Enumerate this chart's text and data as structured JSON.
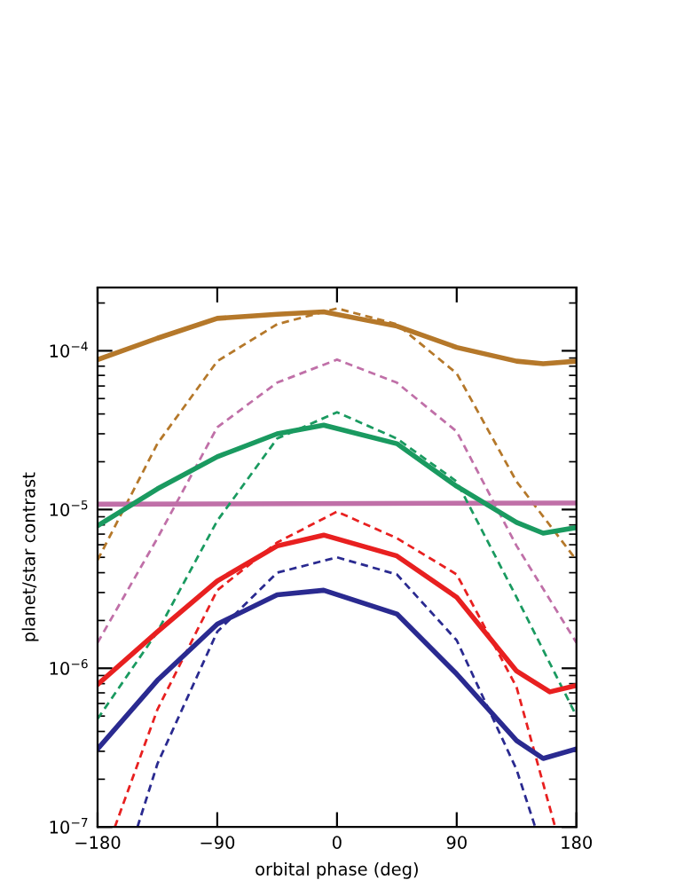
{
  "chart_data": {
    "type": "line",
    "xlabel": "orbital phase (deg)",
    "ylabel": "planet/star contrast",
    "log": "y",
    "grid": false,
    "xlim": [
      -180,
      180
    ],
    "xticks": [
      -180,
      -90,
      0,
      90,
      180
    ],
    "ylim": [
      1e-07,
      0.00025
    ],
    "yticks": [
      {
        "value": 1e-07,
        "label": "10$^{−7}$"
      },
      {
        "value": 1e-06,
        "label": "10$^{−6}$"
      },
      {
        "value": 1e-05,
        "label": "10$^{−5}$"
      },
      {
        "value": 0.0001,
        "label": "10$^{−4}$"
      }
    ],
    "series": [
      {
        "color": "#b5782a",
        "line_style": "solid",
        "x": [
          -180,
          -135,
          -90,
          -45,
          -10,
          45,
          90,
          135,
          155,
          180
        ],
        "values": [
          8.8e-05,
          0.00012,
          0.00016,
          0.00017,
          0.000176,
          0.000143,
          0.000105,
          8.6e-05,
          8.3e-05,
          8.6e-05
        ]
      },
      {
        "color": "#b5782a",
        "line_style": "dashed",
        "x": [
          -180,
          -135,
          -90,
          -45,
          0,
          45,
          90,
          135,
          180
        ],
        "values": [
          4.8e-06,
          2.6e-05,
          8.6e-05,
          0.000147,
          0.000185,
          0.000147,
          7.2e-05,
          1.5e-05,
          4.8e-06
        ]
      },
      {
        "color": "#c070a8",
        "line_style": "dashed",
        "x": [
          -180,
          -135,
          -90,
          -45,
          0,
          45,
          90,
          135,
          180
        ],
        "values": [
          1.45e-06,
          6.6e-06,
          3.3e-05,
          6.3e-05,
          8.8e-05,
          6.3e-05,
          3.1e-05,
          5.9e-06,
          1.45e-06
        ]
      },
      {
        "color": "#c070a8",
        "line_style": "solid",
        "x": [
          -180,
          180
        ],
        "values": [
          1.08e-05,
          1.1e-05
        ]
      },
      {
        "color": "#1a9a60",
        "line_style": "dashed",
        "x": [
          -180,
          -135,
          -90,
          -45,
          0,
          45,
          90,
          135,
          180
        ],
        "values": [
          4.8e-07,
          1.7e-06,
          8.5e-06,
          2.8e-05,
          4.1e-05,
          2.8e-05,
          1.5e-05,
          2.8e-06,
          5e-07
        ]
      },
      {
        "color": "#1a9a60",
        "line_style": "solid",
        "x": [
          -180,
          -135,
          -90,
          -45,
          -10,
          45,
          90,
          135,
          155,
          180
        ],
        "values": [
          7.9e-06,
          1.35e-05,
          2.15e-05,
          3e-05,
          3.4e-05,
          2.6e-05,
          1.4e-05,
          8.3e-06,
          7.1e-06,
          7.7e-06
        ]
      },
      {
        "color": "#e82020",
        "line_style": "dashed",
        "x": [
          -167,
          -135,
          -90,
          -45,
          0,
          45,
          90,
          135,
          164
        ],
        "values": [
          1e-07,
          5.5e-07,
          3.1e-06,
          6.2e-06,
          9.7e-06,
          6.6e-06,
          3.9e-06,
          7.6e-07,
          1e-07
        ]
      },
      {
        "color": "#e82020",
        "line_style": "solid",
        "x": [
          -180,
          -135,
          -90,
          -45,
          -10,
          45,
          90,
          135,
          160,
          180
        ],
        "values": [
          7.9e-07,
          1.7e-06,
          3.55e-06,
          5.9e-06,
          6.9e-06,
          5.1e-06,
          2.8e-06,
          9.6e-07,
          7.1e-07,
          7.8e-07
        ]
      },
      {
        "color": "#2a2a90",
        "line_style": "dashed",
        "x": [
          -150,
          -135,
          -90,
          -45,
          0,
          45,
          90,
          135,
          149
        ],
        "values": [
          1e-07,
          2.5e-07,
          1.7e-06,
          4e-06,
          5e-06,
          3.9e-06,
          1.5e-06,
          2.3e-07,
          1e-07
        ]
      },
      {
        "color": "#2a2a90",
        "line_style": "solid",
        "x": [
          -180,
          -135,
          -90,
          -45,
          -10,
          45,
          90,
          135,
          155,
          180
        ],
        "values": [
          3.1e-07,
          8.4e-07,
          1.9e-06,
          2.9e-06,
          3.1e-06,
          2.2e-06,
          9.2e-07,
          3.5e-07,
          2.7e-07,
          3.1e-07
        ]
      }
    ]
  }
}
